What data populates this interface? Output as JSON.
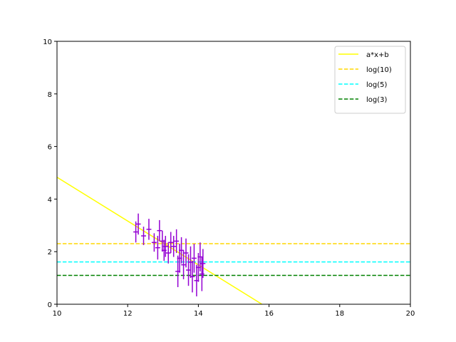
{
  "chart_data": {
    "type": "scatter",
    "xlim": [
      10,
      20
    ],
    "ylim": [
      0,
      10
    ],
    "x_ticks": [
      "10",
      "12",
      "14",
      "16",
      "18",
      "20"
    ],
    "y_ticks": [
      "0",
      "2",
      "4",
      "6",
      "8",
      "10"
    ],
    "grid": false,
    "legend_position": "top-right",
    "series": [
      {
        "name": "a*x+b",
        "kind": "line",
        "color": "#ffff00",
        "dash": "solid",
        "x": [
          10,
          15.8
        ],
        "y": [
          4.83,
          0
        ]
      },
      {
        "name": "log(10)",
        "kind": "hline",
        "color": "#ffd700",
        "dash": "dashed",
        "y": 2.303
      },
      {
        "name": "log(5)",
        "kind": "hline",
        "color": "#00ffff",
        "dash": "dashed",
        "y": 1.609
      },
      {
        "name": "log(3)",
        "kind": "hline",
        "color": "#008000",
        "dash": "dashed",
        "y": 1.099
      },
      {
        "kind": "errorbar",
        "color": "#9400d3",
        "points": [
          {
            "x": 12.23,
            "y": 2.75,
            "xerr": 0.07,
            "yerr": 0.4
          },
          {
            "x": 12.3,
            "y": 3.05,
            "xerr": 0.07,
            "yerr": 0.4
          },
          {
            "x": 12.45,
            "y": 2.6,
            "xerr": 0.07,
            "yerr": 0.35
          },
          {
            "x": 12.6,
            "y": 2.85,
            "xerr": 0.07,
            "yerr": 0.4
          },
          {
            "x": 12.75,
            "y": 2.35,
            "xerr": 0.07,
            "yerr": 0.35
          },
          {
            "x": 12.85,
            "y": 2.15,
            "xerr": 0.07,
            "yerr": 0.45
          },
          {
            "x": 12.9,
            "y": 2.8,
            "xerr": 0.07,
            "yerr": 0.4
          },
          {
            "x": 12.98,
            "y": 2.4,
            "xerr": 0.07,
            "yerr": 0.4
          },
          {
            "x": 13.03,
            "y": 2.05,
            "xerr": 0.07,
            "yerr": 0.4
          },
          {
            "x": 13.07,
            "y": 2.2,
            "xerr": 0.07,
            "yerr": 0.4
          },
          {
            "x": 13.15,
            "y": 1.95,
            "xerr": 0.07,
            "yerr": 0.4
          },
          {
            "x": 13.22,
            "y": 2.35,
            "xerr": 0.07,
            "yerr": 0.4
          },
          {
            "x": 13.3,
            "y": 2.2,
            "xerr": 0.07,
            "yerr": 0.4
          },
          {
            "x": 13.38,
            "y": 2.4,
            "xerr": 0.07,
            "yerr": 0.45
          },
          {
            "x": 13.42,
            "y": 1.25,
            "xerr": 0.07,
            "yerr": 0.6
          },
          {
            "x": 13.47,
            "y": 1.75,
            "xerr": 0.07,
            "yerr": 0.55
          },
          {
            "x": 13.52,
            "y": 2.05,
            "xerr": 0.07,
            "yerr": 0.5
          },
          {
            "x": 13.58,
            "y": 1.5,
            "xerr": 0.07,
            "yerr": 0.55
          },
          {
            "x": 13.65,
            "y": 1.95,
            "xerr": 0.07,
            "yerr": 0.55
          },
          {
            "x": 13.72,
            "y": 1.3,
            "xerr": 0.07,
            "yerr": 0.6
          },
          {
            "x": 13.78,
            "y": 1.6,
            "xerr": 0.07,
            "yerr": 0.6
          },
          {
            "x": 13.83,
            "y": 1.05,
            "xerr": 0.07,
            "yerr": 0.6
          },
          {
            "x": 13.88,
            "y": 1.75,
            "xerr": 0.07,
            "yerr": 0.55
          },
          {
            "x": 13.95,
            "y": 0.9,
            "xerr": 0.07,
            "yerr": 0.6
          },
          {
            "x": 14.0,
            "y": 1.4,
            "xerr": 0.07,
            "yerr": 0.55
          },
          {
            "x": 14.05,
            "y": 1.8,
            "xerr": 0.07,
            "yerr": 0.55
          },
          {
            "x": 14.1,
            "y": 1.15,
            "xerr": 0.07,
            "yerr": 0.65
          },
          {
            "x": 14.13,
            "y": 1.55,
            "xerr": 0.07,
            "yerr": 0.55
          }
        ]
      }
    ]
  }
}
